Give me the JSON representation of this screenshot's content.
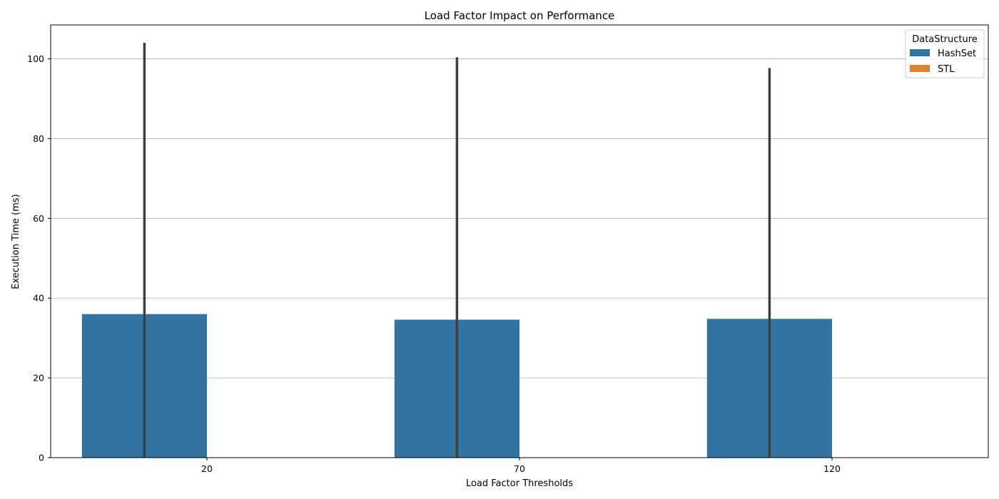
{
  "chart_data": {
    "type": "bar",
    "title": "Load Factor Impact on Performance",
    "xlabel": "Load Factor Thresholds",
    "ylabel": "Execution Time (ms)",
    "categories": [
      "20",
      "70",
      "120"
    ],
    "ylim": [
      0,
      108.5
    ],
    "yticks": [
      0,
      20,
      40,
      60,
      80,
      100
    ],
    "grid": "horizontal",
    "legend": {
      "title": "DataStructure",
      "placement": "top-right"
    },
    "series": [
      {
        "name": "HashSet",
        "color": "#3274a1",
        "values": [
          36.0,
          34.6,
          34.8
        ],
        "error_low": [
          0,
          0,
          0
        ],
        "error_high": [
          104.0,
          100.4,
          97.7
        ]
      },
      {
        "name": "STL",
        "color": "#e1812c",
        "values": [
          null,
          null,
          null
        ]
      }
    ],
    "error_bar_color": "#3f3f3f"
  }
}
